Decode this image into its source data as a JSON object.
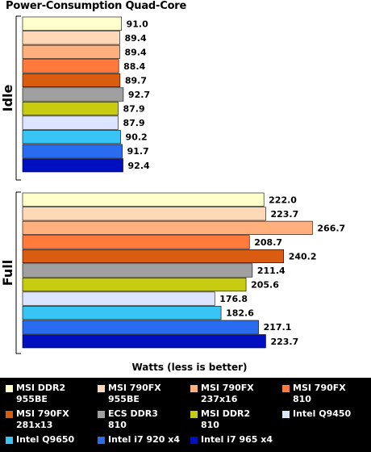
{
  "chart_data": {
    "type": "bar",
    "orientation": "horizontal",
    "title": "Power-Consumption Quad-Core",
    "xlabel": "Watts (less is better)",
    "groups": [
      "Idle",
      "Full"
    ],
    "series": [
      {
        "name": "MSI DDR2\n955BE",
        "color": "#ffffcc",
        "values": [
          91.0,
          222.0
        ]
      },
      {
        "name": "MSI 790FX\n955BE",
        "color": "#ffd8b8",
        "values": [
          89.4,
          223.7
        ]
      },
      {
        "name": "MSI 790FX\n237x16",
        "color": "#ffb07c",
        "values": [
          89.4,
          266.7
        ]
      },
      {
        "name": "MSI 790FX\n810",
        "color": "#ff7a3c",
        "values": [
          88.4,
          208.7
        ]
      },
      {
        "name": "MSI 790FX\n281x13",
        "color": "#d95c10",
        "values": [
          89.7,
          240.2
        ]
      },
      {
        "name": "ECS DDR3\n810",
        "color": "#a0a0a0",
        "values": [
          92.7,
          211.4
        ]
      },
      {
        "name": "MSI DDR2\n810",
        "color": "#c8cc10",
        "values": [
          87.9,
          205.6
        ]
      },
      {
        "name": "Intel Q9450",
        "color": "#dde4ff",
        "values": [
          87.9,
          176.8
        ]
      },
      {
        "name": "Intel Q9650",
        "color": "#38c4f4",
        "values": [
          90.2,
          182.6
        ]
      },
      {
        "name": "Intel i7 920 x4",
        "color": "#2a6cf0",
        "values": [
          91.7,
          217.1
        ]
      },
      {
        "name": "Intel i7 965 x4",
        "color": "#0010c0",
        "values": [
          92.4,
          223.7
        ]
      }
    ],
    "xlim": [
      0,
      300
    ],
    "grid": false,
    "legend_position": "bottom"
  }
}
